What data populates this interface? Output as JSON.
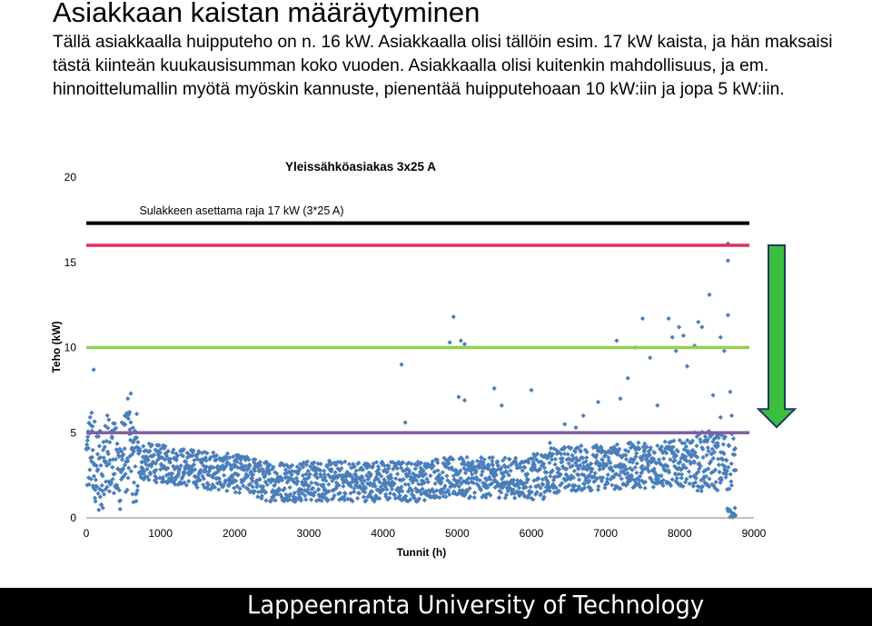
{
  "slide": {
    "title": "Asiakkaan kaistan määräytyminen",
    "body": "Tällä asiakkaalla huipputeho on n. 16 kW. Asiakkaalla olisi tällöin esim. 17 kW kaista, ja hän maksaisi tästä kiinteän kuukausisumman koko vuoden. Asiakkaalla olisi kuitenkin mahdollisuus, ja em. hinnoittelumallin myötä myöskin kannuste, pienentää huipputehoaan 10 kW:iin ja jopa 5 kW:iin."
  },
  "footer": {
    "text": "Lappeenranta University of Technology"
  },
  "chart_data": {
    "type": "scatter",
    "title": "Yleissähköasiakas 3x25 A",
    "xlabel": "Tunnit (h)",
    "ylabel": "Teho (kW)",
    "xlim": [
      0,
      9000
    ],
    "ylim": [
      0,
      20
    ],
    "x_ticks": [
      0,
      1000,
      2000,
      3000,
      4000,
      5000,
      6000,
      7000,
      8000,
      9000
    ],
    "y_ticks": [
      0,
      5,
      10,
      15,
      20
    ],
    "grid": false,
    "annotation": "Sulakkeen asettama raja 17 kW (3*25 A)",
    "reference_lines": [
      {
        "y": 17.3,
        "color": "#000000"
      },
      {
        "y": 16.0,
        "color": "#e0305a"
      },
      {
        "y": 10.0,
        "color": "#92d050"
      },
      {
        "y": 5.0,
        "color": "#7f5fa0"
      }
    ],
    "arrow": {
      "from": 16,
      "to": 5,
      "color": "#3cbf3c",
      "direction": "down"
    },
    "marker_color": "#4a7ebb",
    "outliers": [
      [
        100,
        8.7
      ],
      [
        480,
        5.6
      ],
      [
        520,
        6.0
      ],
      [
        560,
        7.0
      ],
      [
        600,
        7.3
      ],
      [
        680,
        6.1
      ],
      [
        4250,
        9.0
      ],
      [
        4300,
        5.6
      ],
      [
        4900,
        10.3
      ],
      [
        4950,
        11.8
      ],
      [
        5050,
        10.4
      ],
      [
        5100,
        10.2
      ],
      [
        5020,
        7.1
      ],
      [
        5100,
        6.9
      ],
      [
        5500,
        7.6
      ],
      [
        5600,
        6.6
      ],
      [
        6000,
        7.5
      ],
      [
        6450,
        5.5
      ],
      [
        6600,
        5.3
      ],
      [
        6700,
        6.0
      ],
      [
        6900,
        6.8
      ],
      [
        7150,
        10.4
      ],
      [
        7200,
        7.0
      ],
      [
        7300,
        8.2
      ],
      [
        7400,
        10.0
      ],
      [
        7500,
        11.7
      ],
      [
        7600,
        9.4
      ],
      [
        7700,
        6.6
      ],
      [
        7850,
        11.7
      ],
      [
        7900,
        10.6
      ],
      [
        7950,
        9.8
      ],
      [
        7990,
        11.2
      ],
      [
        8050,
        10.7
      ],
      [
        8100,
        8.9
      ],
      [
        8200,
        10.1
      ],
      [
        8250,
        11.5
      ],
      [
        8300,
        11.2
      ],
      [
        8400,
        13.1
      ],
      [
        8550,
        10.6
      ],
      [
        8650,
        11.9
      ],
      [
        8650,
        15.1
      ],
      [
        8650,
        16.1
      ],
      [
        8600,
        9.8
      ],
      [
        8550,
        5.9
      ],
      [
        8450,
        7.2
      ],
      [
        8680,
        7.4
      ],
      [
        8700,
        6.0
      ],
      [
        6250,
        4.4
      ]
    ]
  }
}
